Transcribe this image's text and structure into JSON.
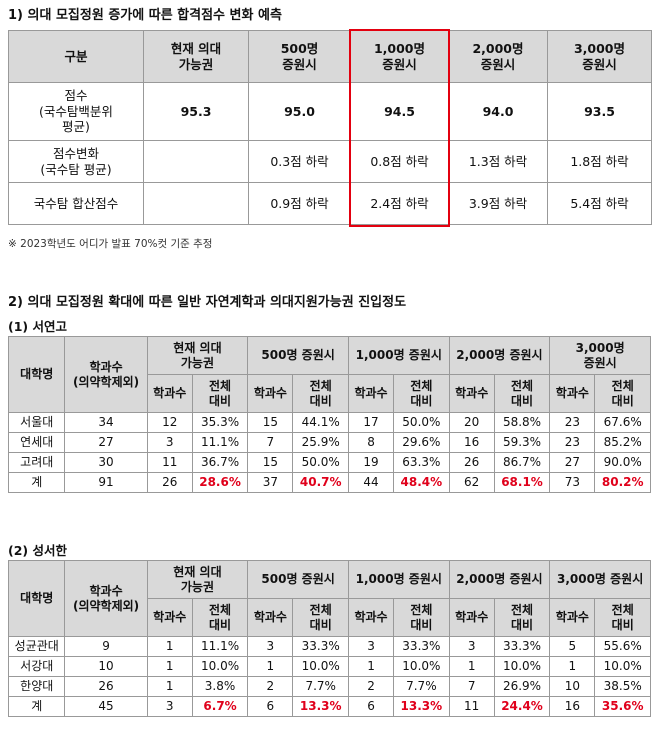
{
  "section1": {
    "title": "1) 의대 모집정원 증가에 따른 합격점수 변화 예측",
    "headers": [
      "구분",
      "현재 의대\n가능권",
      "500명\n증원시",
      "1,000명\n증원시",
      "2,000명\n증원시",
      "3,000명\n증원시"
    ],
    "rows": [
      {
        "label": "점수\n(국수탐백분위\n평균)",
        "cells": [
          "95.3",
          "95.0",
          "94.5",
          "94.0",
          "93.5"
        ]
      },
      {
        "label": "점수변화\n(국수탐 평균)",
        "cells": [
          "",
          "0.3점 하락",
          "0.8점 하락",
          "1.3점 하락",
          "1.8점 하락"
        ]
      },
      {
        "label": "국수탐 합산점수",
        "cells": [
          "",
          "0.9점 하락",
          "2.4점 하락",
          "3.9점 하락",
          "5.4점 하락"
        ]
      }
    ],
    "note": "※ 2023학년도 어디가 발표 70%컷 기준 추정",
    "highlight_color": "#e3000f"
  },
  "section2": {
    "title": "2) 의대 모집정원 확대에 따른 일반 자연계학과 의대지원가능권 진입정도",
    "header_univ": "대학명",
    "header_count": "학과수\n(의약학제외)",
    "group_headers_a": [
      "현재 의대\n가능권",
      "500명 증원시",
      "1,000명 증원시",
      "2,000명 증원시",
      "3,000명\n증원시"
    ],
    "group_headers_b": [
      "현재 의대\n가능권",
      "500명 증원시",
      "1,000명 증원시",
      "2,000명 증원시",
      "3,000명 증원시"
    ],
    "sub_count": "학과수",
    "sub_ratio": "전체\n대비",
    "tableA": {
      "title": "(1) 서연고",
      "rows": [
        {
          "univ": "서울대",
          "total": "34",
          "vals": [
            "12",
            "35.3%",
            "15",
            "44.1%",
            "17",
            "50.0%",
            "20",
            "58.8%",
            "23",
            "67.6%"
          ]
        },
        {
          "univ": "연세대",
          "total": "27",
          "vals": [
            "3",
            "11.1%",
            "7",
            "25.9%",
            "8",
            "29.6%",
            "16",
            "59.3%",
            "23",
            "85.2%"
          ]
        },
        {
          "univ": "고려대",
          "total": "30",
          "vals": [
            "11",
            "36.7%",
            "15",
            "50.0%",
            "19",
            "63.3%",
            "26",
            "86.7%",
            "27",
            "90.0%"
          ]
        },
        {
          "univ": "계",
          "total": "91",
          "vals": [
            "26",
            "28.6%",
            "37",
            "40.7%",
            "44",
            "48.4%",
            "62",
            "68.1%",
            "73",
            "80.2%"
          ]
        }
      ]
    },
    "tableB": {
      "title": "(2) 성서한",
      "rows": [
        {
          "univ": "성균관대",
          "total": "9",
          "vals": [
            "1",
            "11.1%",
            "3",
            "33.3%",
            "3",
            "33.3%",
            "3",
            "33.3%",
            "5",
            "55.6%"
          ]
        },
        {
          "univ": "서강대",
          "total": "10",
          "vals": [
            "1",
            "10.0%",
            "1",
            "10.0%",
            "1",
            "10.0%",
            "1",
            "10.0%",
            "1",
            "10.0%"
          ]
        },
        {
          "univ": "한양대",
          "total": "26",
          "vals": [
            "1",
            "3.8%",
            "2",
            "7.7%",
            "2",
            "7.7%",
            "7",
            "26.9%",
            "10",
            "38.5%"
          ]
        },
        {
          "univ": "계",
          "total": "45",
          "vals": [
            "3",
            "6.7%",
            "6",
            "13.3%",
            "6",
            "13.3%",
            "11",
            "24.4%",
            "16",
            "35.6%"
          ]
        }
      ]
    },
    "total_ratio_color": "#e0001b"
  }
}
